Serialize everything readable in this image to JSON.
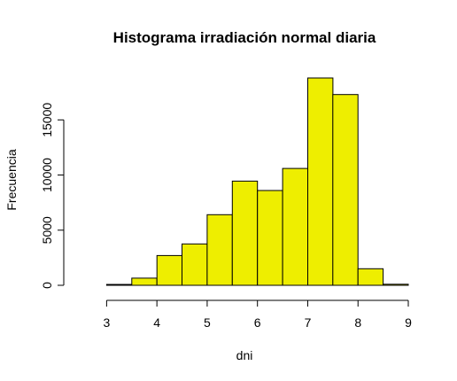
{
  "chart_data": {
    "type": "bar",
    "title": "Histograma irradiación normal diaria",
    "xlabel": "dni",
    "ylabel": "Frecuencia",
    "bar_color": "#EEEE00",
    "bin_edges": [
      2.5,
      3.0,
      3.5,
      4.0,
      4.5,
      5.0,
      5.5,
      6.0,
      6.5,
      7.0,
      7.5,
      8.0,
      8.5,
      9.0
    ],
    "values": [
      0,
      80,
      650,
      2700,
      3750,
      6400,
      9450,
      8600,
      10600,
      18800,
      17300,
      1500,
      100
    ],
    "x_ticks": [
      3,
      4,
      5,
      6,
      7,
      8,
      9
    ],
    "x_tick_labels": [
      "3",
      "4",
      "5",
      "6",
      "7",
      "8",
      "9"
    ],
    "y_ticks": [
      0,
      5000,
      10000,
      15000
    ],
    "y_tick_labels": [
      "0",
      "5000",
      "10000",
      "15000"
    ],
    "xlim": [
      2.5,
      9.0
    ],
    "ylim": [
      0,
      18800
    ],
    "grid": false,
    "legend": "none"
  }
}
